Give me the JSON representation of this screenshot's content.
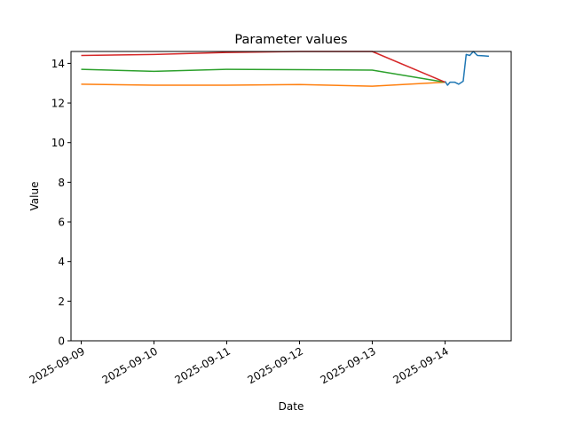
{
  "chart_data": {
    "type": "line",
    "title": "Parameter values",
    "xlabel": "Date",
    "ylabel": "Value",
    "x_ticks": [
      "2025-09-09",
      "2025-09-10",
      "2025-09-11",
      "2025-09-12",
      "2025-09-13",
      "2025-09-14"
    ],
    "y_ticks": [
      "0",
      "2",
      "4",
      "6",
      "8",
      "10",
      "12",
      "14"
    ],
    "xlim": [
      "2025-09-08T20:38",
      "2025-09-14T21:50"
    ],
    "ylim": [
      0,
      14.6
    ],
    "grid": false,
    "series": [
      {
        "color": "#1f77b4",
        "points": [
          [
            "2025-09-14T00:00",
            13.1
          ],
          [
            "2025-09-14T00:50",
            12.9
          ],
          [
            "2025-09-14T01:40",
            13.05
          ],
          [
            "2025-09-14T03:10",
            13.05
          ],
          [
            "2025-09-14T04:30",
            12.95
          ],
          [
            "2025-09-14T06:00",
            13.1
          ],
          [
            "2025-09-14T07:00",
            14.45
          ],
          [
            "2025-09-14T08:10",
            14.4
          ],
          [
            "2025-09-14T09:20",
            14.6
          ],
          [
            "2025-09-14T10:40",
            14.4
          ],
          [
            "2025-09-14T12:40",
            14.38
          ],
          [
            "2025-09-14T14:30",
            14.36
          ]
        ]
      },
      {
        "color": "#ff7f0e",
        "points": [
          [
            "2025-09-09T00:00",
            12.95
          ],
          [
            "2025-09-10T00:00",
            12.9
          ],
          [
            "2025-09-11T00:00",
            12.9
          ],
          [
            "2025-09-12T00:00",
            12.93
          ],
          [
            "2025-09-13T00:00",
            12.85
          ],
          [
            "2025-09-14T00:00",
            13.05
          ]
        ]
      },
      {
        "color": "#2ca02c",
        "points": [
          [
            "2025-09-09T00:00",
            13.7
          ],
          [
            "2025-09-10T00:00",
            13.6
          ],
          [
            "2025-09-11T00:00",
            13.7
          ],
          [
            "2025-09-12T00:00",
            13.68
          ],
          [
            "2025-09-13T00:00",
            13.66
          ],
          [
            "2025-09-14T00:00",
            13.05
          ]
        ]
      },
      {
        "color": "#d62728",
        "points": [
          [
            "2025-09-09T00:00",
            14.4
          ],
          [
            "2025-09-10T00:00",
            14.45
          ],
          [
            "2025-09-11T00:00",
            14.55
          ],
          [
            "2025-09-12T00:00",
            14.6
          ],
          [
            "2025-09-13T00:00",
            14.6
          ],
          [
            "2025-09-14T00:00",
            13.05
          ]
        ]
      }
    ]
  }
}
